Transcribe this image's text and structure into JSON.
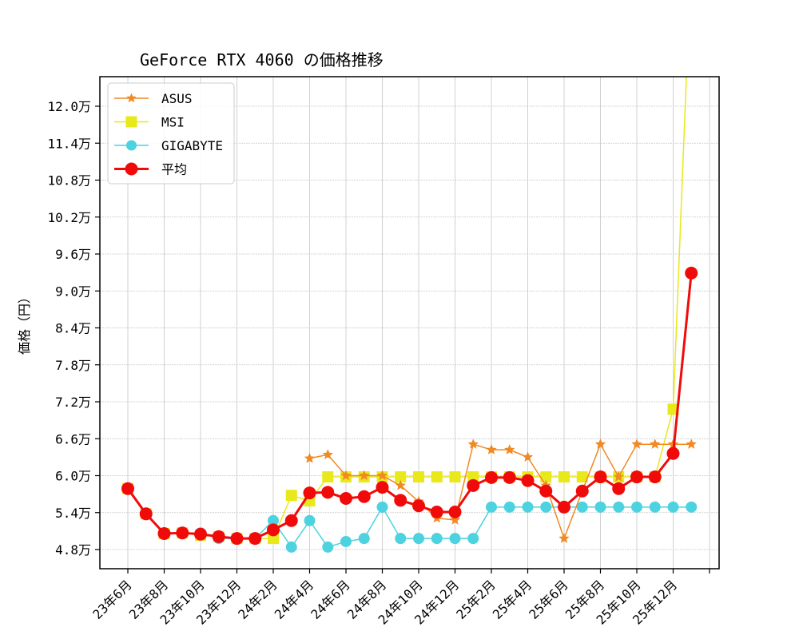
{
  "chart_data": {
    "type": "line",
    "title": "GeForce RTX 4060 の価格推移",
    "xlabel": "",
    "ylabel": "価格（円）",
    "ylim": [
      4.65,
      12.45
    ],
    "y_unit": "万円",
    "yticks": [
      4.8,
      5.4,
      6.0,
      6.6,
      7.2,
      7.8,
      8.4,
      9.0,
      9.6,
      10.2,
      10.8,
      11.4,
      12.0
    ],
    "ytick_labels": [
      "4.8万",
      "5.4万",
      "6.0万",
      "6.6万",
      "7.2万",
      "7.8万",
      "8.4万",
      "9.0万",
      "9.6万",
      "10.2万",
      "10.8万",
      "11.4万",
      "12.0万"
    ],
    "xtick_labels": [
      "23年6月",
      "23年8月",
      "23年10月",
      "23年12月",
      "24年2月",
      "24年4月",
      "24年6月",
      "24年8月",
      "24年10月",
      "24年12月",
      "25年2月",
      "25年4月",
      "25年6月",
      "25年8月",
      "25年10月",
      "25年12月",
      ""
    ],
    "x": [
      "23年6月",
      "23年7月",
      "23年8月",
      "23年9月",
      "23年10月",
      "23年11月",
      "23年12月",
      "24年1月",
      "24年2月",
      "24年3月",
      "24年4月",
      "24年5月",
      "24年6月",
      "24年7月",
      "24年8月",
      "24年9月",
      "24年10月",
      "24年11月",
      "24年12月",
      "25年1月",
      "25年2月",
      "25年3月",
      "25年4月",
      "25年5月",
      "25年6月",
      "25年7月",
      "25年8月",
      "25年9月",
      "25年10月",
      "25年11月",
      "25年12月",
      "26年1月"
    ],
    "grid": true,
    "legend_position": "upper left",
    "series": [
      {
        "name": "ASUS",
        "color": "#f08a24",
        "marker": "star",
        "linewidth": 1.5,
        "values": [
          null,
          null,
          null,
          null,
          null,
          null,
          null,
          null,
          null,
          null,
          6.28,
          6.34,
          6.0,
          6.0,
          6.0,
          5.84,
          5.58,
          5.31,
          5.28,
          6.51,
          6.42,
          6.42,
          6.3,
          5.84,
          4.98,
          5.75,
          6.51,
          5.98,
          6.51,
          6.51,
          6.51,
          6.51
        ]
      },
      {
        "name": "MSI",
        "color": "#e8e81a",
        "marker": "square",
        "linewidth": 1.5,
        "values": [
          5.79,
          5.38,
          5.06,
          5.07,
          5.03,
          5.01,
          4.98,
          4.98,
          4.98,
          5.68,
          5.59,
          5.98,
          5.98,
          5.98,
          5.98,
          5.98,
          5.98,
          5.98,
          5.98,
          5.98,
          5.98,
          5.98,
          5.98,
          5.98,
          5.98,
          5.98,
          5.98,
          5.98,
          5.98,
          5.98,
          7.08,
          14.5
        ]
      },
      {
        "name": "GIGABYTE",
        "color": "#4dd2e0",
        "marker": "circle",
        "linewidth": 1.5,
        "values": [
          5.79,
          5.38,
          5.06,
          5.07,
          5.07,
          4.98,
          4.98,
          4.98,
          5.27,
          4.84,
          5.27,
          4.84,
          4.93,
          4.98,
          5.49,
          4.98,
          4.98,
          4.98,
          4.98,
          4.98,
          5.49,
          5.49,
          5.49,
          5.49,
          5.49,
          5.49,
          5.49,
          5.49,
          5.49,
          5.49,
          5.49,
          5.49
        ]
      },
      {
        "name": "平均",
        "color": "#f00a0a",
        "marker": "circle",
        "linewidth": 3,
        "values": [
          5.79,
          5.38,
          5.06,
          5.07,
          5.05,
          5.01,
          4.98,
          4.98,
          5.12,
          5.27,
          5.72,
          5.73,
          5.63,
          5.66,
          5.81,
          5.6,
          5.51,
          5.41,
          5.41,
          5.84,
          5.97,
          5.97,
          5.92,
          5.75,
          5.49,
          5.75,
          5.98,
          5.79,
          5.98,
          5.98,
          6.36,
          9.29
        ]
      }
    ]
  }
}
